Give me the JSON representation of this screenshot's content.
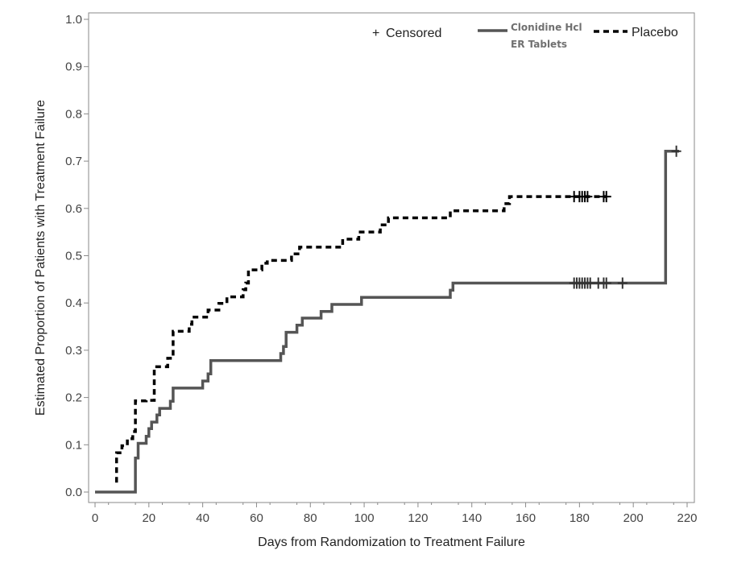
{
  "chart_data": {
    "type": "line",
    "xlabel": "Days from Randomization to Treatment Failure",
    "ylabel": "Estimated Proportion of Patients with Treatment Failure",
    "xlim": [
      0,
      220
    ],
    "ylim": [
      0,
      1.0
    ],
    "xticks": [
      "0",
      "20",
      "40",
      "60",
      "80",
      "100",
      "120",
      "140",
      "160",
      "180",
      "200",
      "220"
    ],
    "yticks": [
      "0.0",
      "0.1",
      "0.2",
      "0.3",
      "0.4",
      "0.5",
      "0.6",
      "0.7",
      "0.8",
      "0.9",
      "1.0"
    ],
    "grid": false,
    "legend_position": "top-right",
    "legend": {
      "censored": "Censored",
      "censored_symbol": "+",
      "clonidine_line1": "Clonidine Hcl",
      "clonidine_line2": "ER Tablets",
      "placebo": "Placebo"
    },
    "series": [
      {
        "name": "Clonidine Hcl ER Tablets",
        "style": "solid",
        "color": "#555555",
        "points": [
          [
            0,
            0.0
          ],
          [
            15,
            0.0
          ],
          [
            15,
            0.072
          ],
          [
            16,
            0.072
          ],
          [
            16,
            0.103
          ],
          [
            19,
            0.103
          ],
          [
            19,
            0.118
          ],
          [
            20,
            0.118
          ],
          [
            20,
            0.134
          ],
          [
            21,
            0.134
          ],
          [
            21,
            0.148
          ],
          [
            23,
            0.148
          ],
          [
            23,
            0.163
          ],
          [
            24,
            0.163
          ],
          [
            24,
            0.177
          ],
          [
            28,
            0.177
          ],
          [
            28,
            0.192
          ],
          [
            29,
            0.192
          ],
          [
            29,
            0.22
          ],
          [
            40,
            0.22
          ],
          [
            40,
            0.235
          ],
          [
            42,
            0.235
          ],
          [
            42,
            0.25
          ],
          [
            43,
            0.25
          ],
          [
            43,
            0.278
          ],
          [
            69,
            0.278
          ],
          [
            69,
            0.293
          ],
          [
            70,
            0.293
          ],
          [
            70,
            0.308
          ],
          [
            71,
            0.308
          ],
          [
            71,
            0.338
          ],
          [
            75,
            0.338
          ],
          [
            75,
            0.353
          ],
          [
            77,
            0.353
          ],
          [
            77,
            0.368
          ],
          [
            84,
            0.368
          ],
          [
            84,
            0.382
          ],
          [
            88,
            0.382
          ],
          [
            88,
            0.397
          ],
          [
            99,
            0.397
          ],
          [
            99,
            0.412
          ],
          [
            132,
            0.412
          ],
          [
            132,
            0.427
          ],
          [
            133,
            0.427
          ],
          [
            133,
            0.442
          ],
          [
            212,
            0.442
          ],
          [
            212,
            0.721
          ],
          [
            217,
            0.721
          ]
        ],
        "censored_x": [
          178,
          179,
          180,
          181,
          182,
          183,
          184,
          187,
          189,
          190,
          196
        ],
        "censored_y": 0.442,
        "censored_extra": [
          [
            216,
            0.721
          ]
        ]
      },
      {
        "name": "Placebo",
        "style": "dashed",
        "color": "#000000",
        "points": [
          [
            8,
            0.02
          ],
          [
            8,
            0.083
          ],
          [
            10,
            0.083
          ],
          [
            10,
            0.098
          ],
          [
            12,
            0.098
          ],
          [
            12,
            0.113
          ],
          [
            14,
            0.113
          ],
          [
            14,
            0.128
          ],
          [
            15,
            0.128
          ],
          [
            15,
            0.193
          ],
          [
            19,
            0.193
          ],
          [
            19,
            0.194
          ],
          [
            22,
            0.194
          ],
          [
            22,
            0.265
          ],
          [
            27,
            0.265
          ],
          [
            27,
            0.283
          ],
          [
            29,
            0.283
          ],
          [
            29,
            0.34
          ],
          [
            35,
            0.34
          ],
          [
            35,
            0.355
          ],
          [
            36,
            0.355
          ],
          [
            36,
            0.37
          ],
          [
            42,
            0.37
          ],
          [
            42,
            0.385
          ],
          [
            46,
            0.385
          ],
          [
            46,
            0.399
          ],
          [
            49,
            0.399
          ],
          [
            49,
            0.413
          ],
          [
            55,
            0.413
          ],
          [
            55,
            0.428
          ],
          [
            56,
            0.428
          ],
          [
            56,
            0.442
          ],
          [
            57,
            0.442
          ],
          [
            57,
            0.47
          ],
          [
            62,
            0.47
          ],
          [
            62,
            0.484
          ],
          [
            64,
            0.484
          ],
          [
            64,
            0.49
          ],
          [
            73,
            0.49
          ],
          [
            73,
            0.504
          ],
          [
            76,
            0.504
          ],
          [
            76,
            0.518
          ],
          [
            92,
            0.518
          ],
          [
            92,
            0.535
          ],
          [
            98,
            0.535
          ],
          [
            98,
            0.55
          ],
          [
            106,
            0.55
          ],
          [
            106,
            0.565
          ],
          [
            109,
            0.565
          ],
          [
            109,
            0.58
          ],
          [
            132,
            0.58
          ],
          [
            132,
            0.595
          ],
          [
            152,
            0.595
          ],
          [
            152,
            0.61
          ],
          [
            154,
            0.61
          ],
          [
            154,
            0.625
          ],
          [
            190,
            0.625
          ]
        ],
        "censored_x": [
          178,
          180,
          181,
          182,
          183,
          189,
          190
        ],
        "censored_y": 0.625
      }
    ]
  }
}
